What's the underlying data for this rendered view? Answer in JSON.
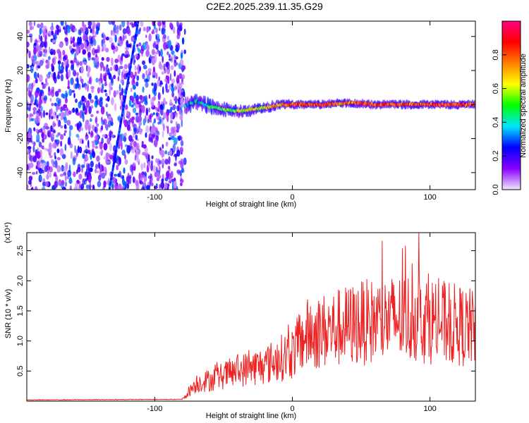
{
  "title": "C2E2.2025.239.11.35.G29",
  "chart_data": [
    {
      "type": "heatmap",
      "xlabel": "Height of straight line (km)",
      "ylabel": "Frequency (Hz)",
      "xlim": [
        -193,
        133
      ],
      "ylim": [
        -50,
        49
      ],
      "xticks": [
        -100,
        0,
        100
      ],
      "yticks": [
        -40,
        -20,
        0,
        20,
        40
      ],
      "xtick_labels": [
        "-100",
        "0",
        "100"
      ],
      "ytick_labels": [
        "-40",
        "-20",
        "0",
        "20",
        "40"
      ],
      "colorbar": {
        "label": "Normalized spectral amplitude",
        "range": [
          0.0,
          1.0
        ],
        "ticks": [
          0.0,
          0.2,
          0.4,
          0.6,
          0.8
        ],
        "tick_labels": [
          "0.0",
          "0.2",
          "0.4",
          "0.6",
          "0.8"
        ],
        "colors": [
          "#f2e8ff",
          "#8a00ff",
          "#0000ff",
          "#00e5ff",
          "#00ff00",
          "#ffff00",
          "#ff8000",
          "#ff0000",
          "#ff0080"
        ]
      },
      "noise_region_end_km": -78,
      "ridge": [
        {
          "x": -78,
          "y": -1
        },
        {
          "x": -70,
          "y": 2
        },
        {
          "x": -60,
          "y": -1
        },
        {
          "x": -50,
          "y": -3
        },
        {
          "x": -40,
          "y": -4
        },
        {
          "x": -30,
          "y": -3
        },
        {
          "x": -20,
          "y": -2
        },
        {
          "x": -10,
          "y": 0
        },
        {
          "x": 0,
          "y": 0
        },
        {
          "x": 20,
          "y": 0
        },
        {
          "x": 40,
          "y": 1
        },
        {
          "x": 60,
          "y": 0
        },
        {
          "x": 80,
          "y": 0
        },
        {
          "x": 100,
          "y": 0
        },
        {
          "x": 133,
          "y": 0
        }
      ],
      "diagonal_streak": {
        "x_start": -133,
        "y_start": -50,
        "x_end": -112,
        "y_end": 49
      }
    },
    {
      "type": "line",
      "xlabel": "Height of straight line (km)",
      "ylabel": "SNR (10 * v/v)",
      "scale_label": "(x10⁴)",
      "xlim": [
        -193,
        133
      ],
      "ylim": [
        0,
        2.8
      ],
      "xticks": [
        -100,
        0,
        100
      ],
      "yticks": [
        0.5,
        1.0,
        1.5,
        2.0,
        2.5
      ],
      "xtick_labels": [
        "-100",
        "0",
        "100"
      ],
      "ytick_labels": [
        "0.5",
        "1.0",
        "1.5",
        "2.0",
        "2.5"
      ],
      "series": [
        {
          "name": "SNR",
          "color": "#ee2222",
          "envelope": [
            {
              "x": -193,
              "y": 0.02
            },
            {
              "x": -80,
              "y": 0.03
            },
            {
              "x": -70,
              "y": 0.3
            },
            {
              "x": -60,
              "y": 0.35
            },
            {
              "x": -40,
              "y": 0.5
            },
            {
              "x": -20,
              "y": 0.6
            },
            {
              "x": 0,
              "y": 0.8
            },
            {
              "x": 10,
              "y": 1.1
            },
            {
              "x": 30,
              "y": 1.2
            },
            {
              "x": 50,
              "y": 1.3
            },
            {
              "x": 70,
              "y": 1.35
            },
            {
              "x": 90,
              "y": 1.4
            },
            {
              "x": 110,
              "y": 1.3
            },
            {
              "x": 133,
              "y": 1.2
            }
          ],
          "peak": {
            "x": 92,
            "y": 2.8
          }
        }
      ]
    }
  ]
}
